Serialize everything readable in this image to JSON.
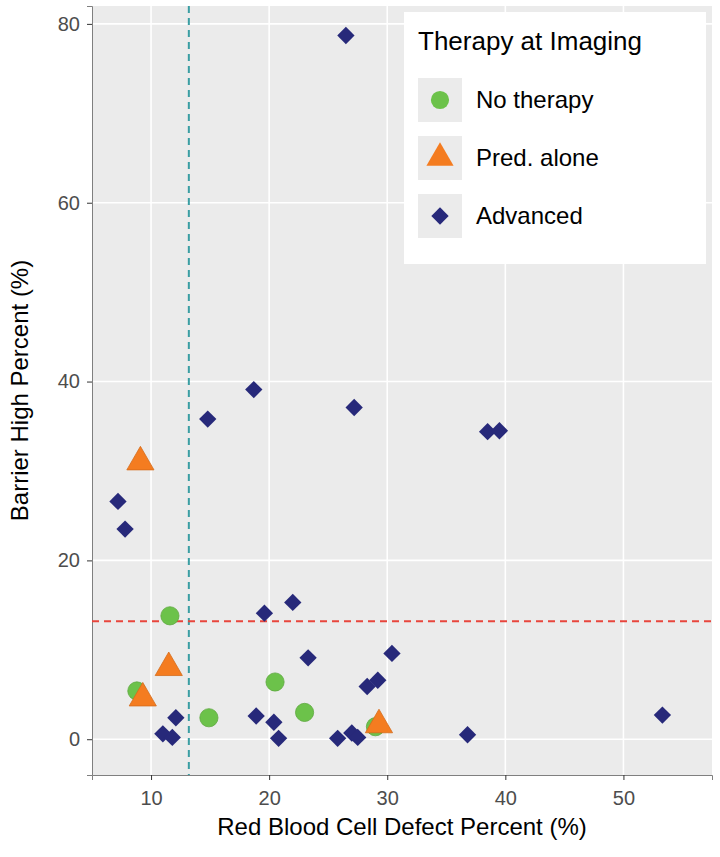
{
  "chart_data": {
    "type": "scatter",
    "x_label": "Red Blood Cell Defect Percent (%)",
    "y_label": "Barrier High Percent (%)",
    "legend_title": "Therapy at Imaging",
    "legend": "top-right",
    "grid": true,
    "xlim": [
      5,
      57.5
    ],
    "ylim": [
      -4,
      82
    ],
    "xticks": [
      10,
      20,
      30,
      40,
      50
    ],
    "yticks": [
      0,
      20,
      40,
      60,
      80
    ],
    "reference_lines": [
      {
        "x": 13.2,
        "color": "#3a9ea3",
        "line_style": "dashed"
      },
      {
        "y": 13.2,
        "color": "#e8453c",
        "line_style": "dashed"
      }
    ],
    "series": [
      {
        "name": "No therapy",
        "color": "#6cc24a",
        "marker": "circle",
        "x": [
          8.8,
          11.6,
          14.9,
          20.5,
          23.0,
          29.0
        ],
        "values": [
          5.4,
          13.8,
          2.4,
          6.4,
          3.0,
          1.4
        ]
      },
      {
        "name": "Pred. alone",
        "color": "#f47c20",
        "marker": "triangle",
        "x": [
          9.1,
          11.5,
          9.3,
          29.3
        ],
        "values": [
          31.0,
          8.0,
          4.6,
          1.6
        ]
      },
      {
        "name": "Advanced",
        "color": "#27297a",
        "marker": "diamond",
        "x": [
          26.5,
          7.2,
          7.8,
          14.8,
          18.7,
          27.2,
          38.5,
          39.5,
          19.6,
          22.0,
          23.3,
          30.4,
          29.2,
          28.3,
          12.1,
          11.0,
          11.8,
          18.9,
          20.4,
          20.8,
          25.8,
          27.0,
          27.5,
          36.8,
          53.3
        ],
        "values": [
          78.7,
          26.6,
          23.5,
          35.8,
          39.1,
          37.1,
          34.4,
          34.5,
          14.1,
          15.3,
          9.1,
          9.6,
          6.6,
          5.9,
          2.4,
          0.6,
          0.2,
          2.6,
          1.9,
          0.1,
          0.1,
          0.7,
          0.2,
          0.5,
          2.7
        ]
      }
    ]
  }
}
